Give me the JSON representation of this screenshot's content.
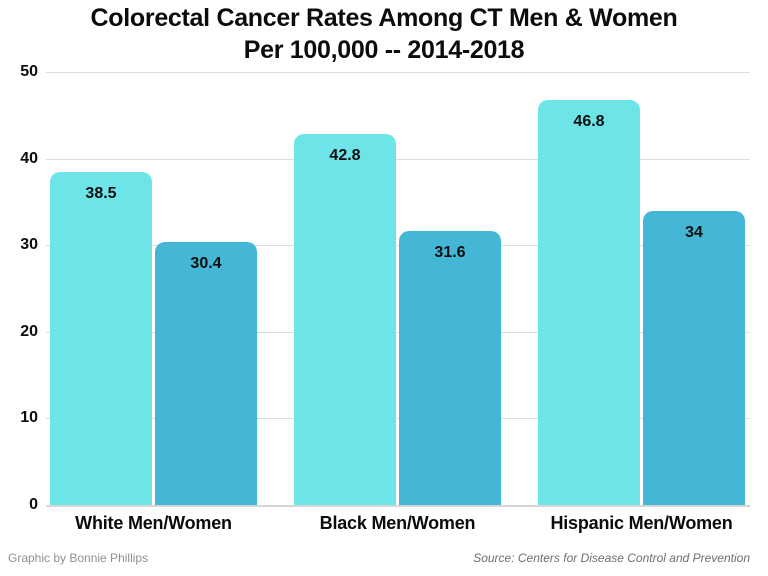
{
  "title": {
    "line1": "Colorectal Cancer Rates Among CT Men & Women",
    "line2": "Per 100,000 -- 2014-2018"
  },
  "chart_data": {
    "type": "bar",
    "categories": [
      "White Men/Women",
      "Black Men/Women",
      "Hispanic Men/Women"
    ],
    "series": [
      {
        "name": "light-cyan-bars",
        "color": "#6DE4E8",
        "values": [
          38.5,
          42.8,
          46.8
        ],
        "labels": [
          "38.5",
          "42.8",
          "46.8"
        ]
      },
      {
        "name": "dark-blue-bars",
        "color": "#44B7D6",
        "values": [
          30.4,
          31.6,
          34.0
        ],
        "labels": [
          "30.4",
          "31.6",
          "34"
        ]
      }
    ],
    "ylim": [
      0,
      50
    ],
    "yticks": [
      0,
      10,
      20,
      30,
      40,
      50
    ],
    "ytick_labels": [
      "0",
      "10",
      "20",
      "30",
      "40",
      "50"
    ],
    "grid": true,
    "legend": false,
    "gridline_color": "#dcdcdc",
    "baseline_color": "#d6d6d6",
    "value_label_color": "#0e0e0e"
  },
  "footer": {
    "credit": "Graphic by Bonnie Phillips",
    "source": "Source: Centers for Disease Control and Prevention"
  }
}
